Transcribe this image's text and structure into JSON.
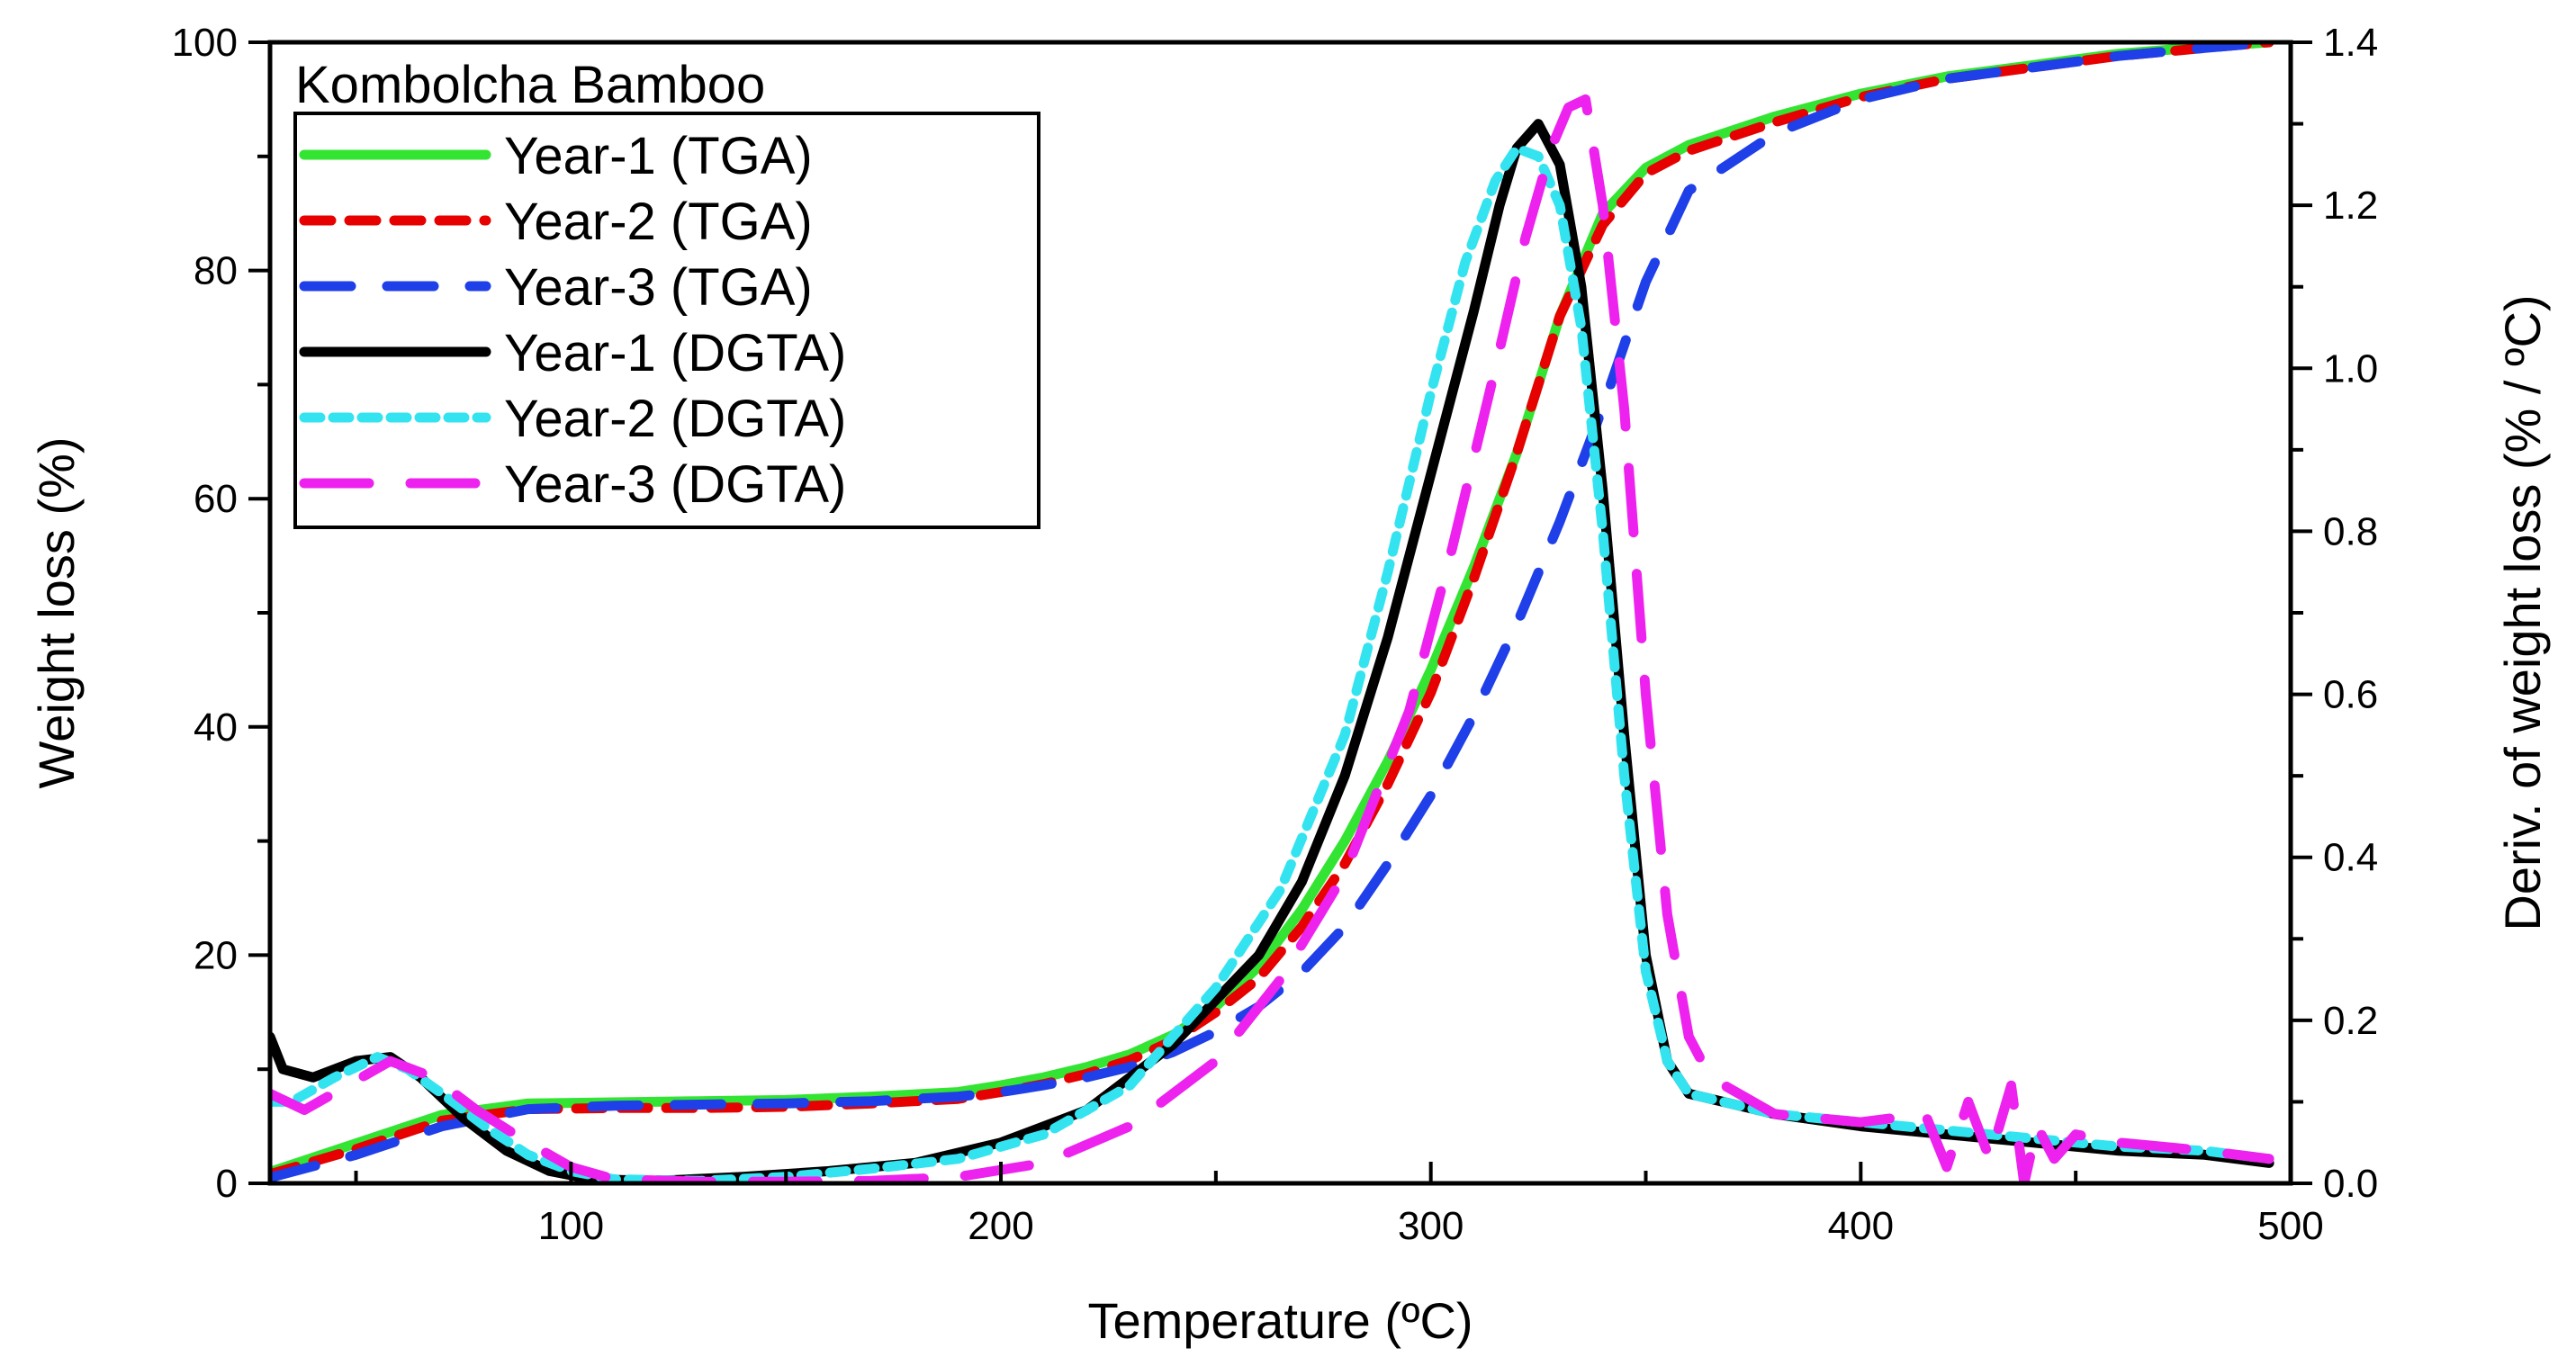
{
  "chart_data": {
    "type": "line",
    "title": "",
    "xlabel": "Temperature (ºC)",
    "ylabel": "Weight loss (%)",
    "y2label": "Deriv. of weight loss (% / ºC)",
    "xlim": [
      30,
      500
    ],
    "ylim": [
      0,
      100
    ],
    "y2lim": [
      0,
      1.4
    ],
    "x_ticks": [
      100,
      200,
      300,
      400,
      500
    ],
    "y_ticks": [
      0,
      20,
      40,
      60,
      80,
      100
    ],
    "y2_ticks": [
      "0.0",
      "0.2",
      "0.4",
      "0.6",
      "0.8",
      "1.0",
      "1.2",
      "1.4"
    ],
    "grid": false,
    "legend": {
      "title": "Kombolcha Bamboo",
      "position": "top-left"
    },
    "series": [
      {
        "name": "Year-1 (TGA)",
        "axis": "left",
        "color": "#33e433",
        "dash": "solid",
        "x": [
          30,
          50,
          70,
          90,
          110,
          130,
          150,
          170,
          190,
          200,
          210,
          220,
          230,
          240,
          250,
          260,
          270,
          280,
          290,
          300,
          310,
          320,
          330,
          340,
          350,
          360,
          380,
          400,
          420,
          440,
          460,
          480,
          495
        ],
        "y": [
          1,
          3.5,
          6,
          7,
          7.1,
          7.2,
          7.3,
          7.6,
          8,
          8.6,
          9.3,
          10.2,
          11.3,
          13,
          15.5,
          19,
          24,
          30,
          37,
          45,
          54,
          64,
          76,
          85,
          89,
          91,
          93.5,
          95.5,
          97,
          98,
          99,
          99.6,
          100
        ]
      },
      {
        "name": "Year-2 (TGA)",
        "axis": "left",
        "color": "#e60000",
        "dash": "medium",
        "x": [
          30,
          50,
          70,
          90,
          110,
          130,
          150,
          170,
          190,
          200,
          210,
          220,
          230,
          240,
          250,
          260,
          270,
          280,
          290,
          300,
          310,
          320,
          330,
          340,
          350,
          360,
          380,
          400,
          420,
          440,
          460,
          480,
          495
        ],
        "y": [
          0.8,
          3,
          5.5,
          6.5,
          6.6,
          6.6,
          6.7,
          7,
          7.4,
          8,
          8.7,
          9.6,
          10.8,
          12.5,
          15,
          18,
          22.5,
          28,
          35,
          43,
          53,
          64,
          76,
          84,
          88.5,
          90.5,
          93,
          95.2,
          96.8,
          97.8,
          98.8,
          99.5,
          100
        ]
      },
      {
        "name": "Year-3 (TGA)",
        "axis": "left",
        "color": "#1f3fe8",
        "dash": "long",
        "x": [
          30,
          50,
          70,
          90,
          110,
          130,
          150,
          170,
          190,
          200,
          210,
          220,
          230,
          240,
          250,
          260,
          270,
          280,
          290,
          300,
          310,
          320,
          330,
          340,
          350,
          360,
          380,
          400,
          420,
          440,
          460,
          480,
          495
        ],
        "y": [
          0.5,
          2.5,
          5,
          6.5,
          6.8,
          6.9,
          7,
          7.2,
          7.6,
          8,
          8.6,
          9.3,
          10.2,
          11.5,
          13.3,
          15.5,
          18.5,
          22.5,
          28,
          34,
          41,
          49,
          58,
          68,
          79,
          87,
          92,
          95,
          96.8,
          97.8,
          98.8,
          99.5,
          100
        ]
      },
      {
        "name": "Year-1 (DGTA)",
        "axis": "right",
        "color": "#000000",
        "dash": "solid",
        "x": [
          30,
          33,
          40,
          50,
          58,
          65,
          75,
          85,
          95,
          105,
          120,
          140,
          160,
          180,
          200,
          220,
          240,
          260,
          270,
          280,
          290,
          300,
          310,
          316,
          320,
          325,
          330,
          335,
          340,
          345,
          350,
          355,
          360,
          380,
          400,
          420,
          440,
          460,
          480,
          495
        ],
        "y": [
          0.18,
          0.14,
          0.13,
          0.15,
          0.155,
          0.13,
          0.08,
          0.04,
          0.015,
          0.005,
          0.003,
          0.008,
          0.015,
          0.025,
          0.05,
          0.09,
          0.17,
          0.28,
          0.37,
          0.5,
          0.67,
          0.87,
          1.07,
          1.2,
          1.27,
          1.3,
          1.25,
          1.1,
          0.85,
          0.55,
          0.28,
          0.15,
          0.11,
          0.085,
          0.07,
          0.06,
          0.05,
          0.04,
          0.035,
          0.025
        ]
      },
      {
        "name": "Year-2 (DGTA)",
        "axis": "right",
        "color": "#33e4f0",
        "dash": "short",
        "x": [
          30,
          35,
          45,
          55,
          62,
          70,
          80,
          90,
          100,
          110,
          130,
          150,
          170,
          190,
          210,
          230,
          250,
          265,
          280,
          290,
          300,
          308,
          315,
          320,
          325,
          330,
          335,
          340,
          345,
          350,
          355,
          360,
          380,
          400,
          420,
          440,
          460,
          480,
          495
        ],
        "y": [
          0.1,
          0.1,
          0.13,
          0.155,
          0.14,
          0.11,
          0.07,
          0.035,
          0.015,
          0.005,
          0.003,
          0.008,
          0.018,
          0.03,
          0.06,
          0.12,
          0.24,
          0.36,
          0.55,
          0.75,
          0.97,
          1.13,
          1.23,
          1.27,
          1.26,
          1.2,
          1.05,
          0.8,
          0.5,
          0.26,
          0.15,
          0.11,
          0.085,
          0.075,
          0.065,
          0.055,
          0.045,
          0.04,
          0.03
        ]
      },
      {
        "name": "Year-3 (DGTA)",
        "axis": "right",
        "color": "#ee22ee",
        "dash": "xlong",
        "x": [
          30,
          38,
          48,
          58,
          68,
          78,
          90,
          100,
          110,
          130,
          150,
          170,
          190,
          210,
          230,
          250,
          265,
          280,
          295,
          305,
          315,
          322,
          328,
          332,
          336,
          340,
          345,
          350,
          355,
          360,
          365,
          380,
          400,
          415,
          420,
          425,
          430,
          435,
          438,
          441,
          445,
          450,
          460,
          480,
          495
        ],
        "y": [
          0.11,
          0.09,
          0.12,
          0.15,
          0.13,
          0.09,
          0.05,
          0.02,
          0.005,
          0.002,
          0.002,
          0.003,
          0.008,
          0.025,
          0.07,
          0.15,
          0.25,
          0.38,
          0.58,
          0.78,
          1.0,
          1.16,
          1.27,
          1.32,
          1.33,
          1.2,
          0.95,
          0.6,
          0.33,
          0.18,
          0.13,
          0.085,
          0.075,
          0.085,
          0.02,
          0.1,
          0.03,
          0.12,
          0.0,
          0.07,
          0.03,
          0.06,
          0.05,
          0.04,
          0.03
        ]
      }
    ]
  }
}
